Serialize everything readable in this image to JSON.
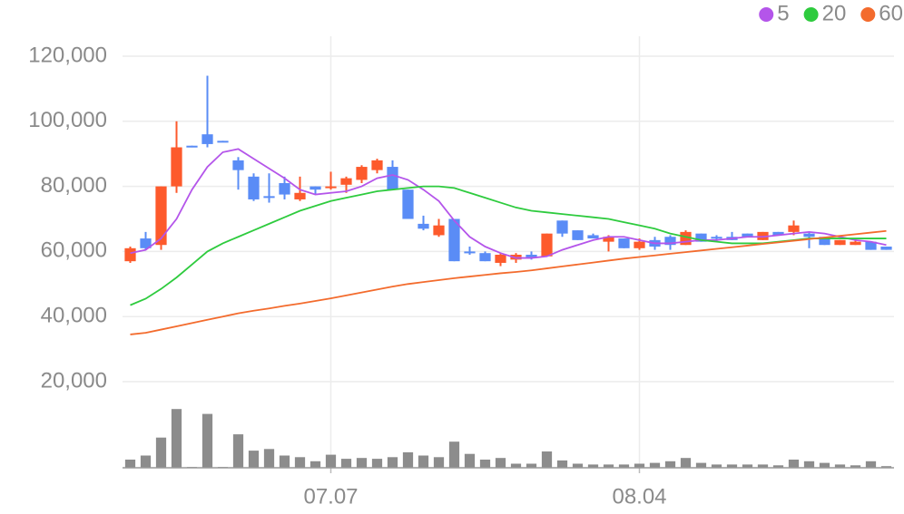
{
  "chart_data": {
    "type": "candlestick",
    "categories": [
      null,
      null,
      null,
      null,
      null,
      null,
      null,
      null,
      null,
      null,
      null,
      null,
      null,
      "07.07",
      null,
      null,
      null,
      null,
      null,
      null,
      null,
      null,
      null,
      null,
      null,
      null,
      null,
      null,
      null,
      null,
      null,
      null,
      null,
      "08.04",
      null,
      null,
      null,
      null,
      null,
      null,
      null,
      null,
      null,
      null,
      null,
      null,
      null,
      null,
      null,
      null
    ],
    "open": [
      57000,
      64000,
      62000,
      80000,
      92500,
      96000,
      94000,
      88000,
      83000,
      77000,
      81000,
      76000,
      80000,
      79500,
      80500,
      82000,
      85000,
      86000,
      79000,
      68500,
      65000,
      70000,
      60000,
      59500,
      56500,
      57500,
      59000,
      58500,
      69500,
      66500,
      65000,
      63000,
      64000,
      61000,
      63500,
      64500,
      62000,
      65500,
      64500,
      64500,
      65500,
      63500,
      66000,
      66000,
      65500,
      64500,
      62000,
      62000,
      63000,
      61500
    ],
    "high": [
      61500,
      66000,
      80000,
      100000,
      92500,
      114000,
      94000,
      89000,
      84000,
      84000,
      83000,
      83000,
      80000,
      84500,
      83000,
      86500,
      88500,
      88000,
      79000,
      71000,
      70000,
      70000,
      61500,
      60000,
      59500,
      59500,
      60000,
      65500,
      69500,
      66500,
      65500,
      65000,
      64000,
      64000,
      64500,
      65000,
      66500,
      65500,
      65000,
      66000,
      65500,
      66000,
      66000,
      69500,
      66000,
      64500,
      63500,
      64000,
      63000,
      61500
    ],
    "low": [
      56500,
      60500,
      60500,
      78000,
      92000,
      92000,
      93800,
      79000,
      75500,
      75000,
      76000,
      75500,
      77500,
      79000,
      78000,
      81000,
      84000,
      79000,
      70000,
      66500,
      64500,
      57000,
      59000,
      57000,
      55500,
      56500,
      57500,
      58500,
      64500,
      63500,
      64000,
      60000,
      61000,
      60500,
      60500,
      60500,
      62000,
      63000,
      63000,
      63500,
      64500,
      63500,
      65000,
      65000,
      61000,
      62000,
      62000,
      62000,
      60500,
      60500
    ],
    "close": [
      61000,
      61000,
      80000,
      92000,
      92000,
      93000,
      93800,
      85000,
      76000,
      76500,
      77500,
      78000,
      79000,
      80000,
      82500,
      86000,
      88000,
      79000,
      70000,
      67000,
      68000,
      57000,
      59500,
      57000,
      59000,
      59000,
      58000,
      65500,
      65500,
      63500,
      64000,
      64500,
      61000,
      63000,
      61500,
      62000,
      66000,
      63000,
      64000,
      63500,
      64500,
      66000,
      65000,
      68000,
      64500,
      62000,
      63500,
      63000,
      60500,
      60500
    ],
    "up_color": "#fd5a2c",
    "down_color": "#5a8cf6",
    "series": [
      {
        "name": "5",
        "color": "#b455ea",
        "values": [
          59500,
          60500,
          64000,
          70000,
          79000,
          86000,
          90500,
          91500,
          88500,
          85500,
          82500,
          79000,
          77500,
          78000,
          78500,
          80000,
          82500,
          83500,
          82000,
          79000,
          75500,
          69500,
          64500,
          61500,
          59500,
          58000,
          58000,
          58500,
          60500,
          62000,
          63500,
          64500,
          64500,
          63500,
          62500,
          62500,
          63000,
          63500,
          63500,
          64000,
          64500,
          64500,
          65000,
          65500,
          66000,
          65500,
          64500,
          63500,
          63000,
          62000
        ]
      },
      {
        "name": "20",
        "color": "#2ecb3e",
        "values": [
          43500,
          45500,
          48500,
          52000,
          56000,
          60000,
          62500,
          64500,
          66500,
          68500,
          70500,
          72500,
          74000,
          75500,
          76500,
          77500,
          78500,
          79000,
          79500,
          80000,
          80000,
          79500,
          78000,
          76500,
          75000,
          73500,
          72500,
          72000,
          71500,
          71000,
          70500,
          70000,
          69000,
          68000,
          67000,
          65500,
          64500,
          63500,
          63000,
          62500,
          62500,
          62500,
          63000,
          63500,
          64000,
          64000,
          64000,
          64000,
          64000,
          64000
        ]
      },
      {
        "name": "60",
        "color": "#f36b2d",
        "values": [
          34500,
          35000,
          36000,
          37000,
          38000,
          39000,
          40000,
          41000,
          41800,
          42500,
          43300,
          44000,
          44800,
          45600,
          46500,
          47400,
          48300,
          49200,
          50000,
          50600,
          51200,
          51800,
          52300,
          52800,
          53300,
          53700,
          54200,
          54800,
          55400,
          56000,
          56600,
          57200,
          57800,
          58300,
          58800,
          59300,
          59800,
          60300,
          60800,
          61300,
          61800,
          62300,
          62800,
          63300,
          63800,
          64300,
          64800,
          65300,
          65800,
          66300
        ]
      }
    ],
    "volume": {
      "color": "#8c8c8c",
      "ylim": [
        0,
        80
      ],
      "values": [
        10,
        15,
        37,
        72,
        1,
        66,
        1,
        41,
        21,
        23,
        15,
        13,
        8,
        16,
        11,
        12,
        11,
        13,
        19,
        15,
        13,
        32,
        17,
        10,
        12,
        5,
        5,
        20,
        9,
        5,
        4,
        4,
        4,
        5,
        6,
        8,
        12,
        6,
        4,
        4,
        4,
        4,
        3,
        10,
        8,
        6,
        4,
        3,
        8,
        2
      ]
    },
    "ylim": [
      20000,
      120000
    ],
    "yticks": [
      {
        "value": 20000,
        "label": "20,000"
      },
      {
        "value": 40000,
        "label": "40,000"
      },
      {
        "value": 60000,
        "label": "60,000"
      },
      {
        "value": 80000,
        "label": "80,000"
      },
      {
        "value": 100000,
        "label": "100,000"
      },
      {
        "value": 120000,
        "label": "120,000"
      }
    ],
    "grid": true,
    "legend": "top-right"
  }
}
